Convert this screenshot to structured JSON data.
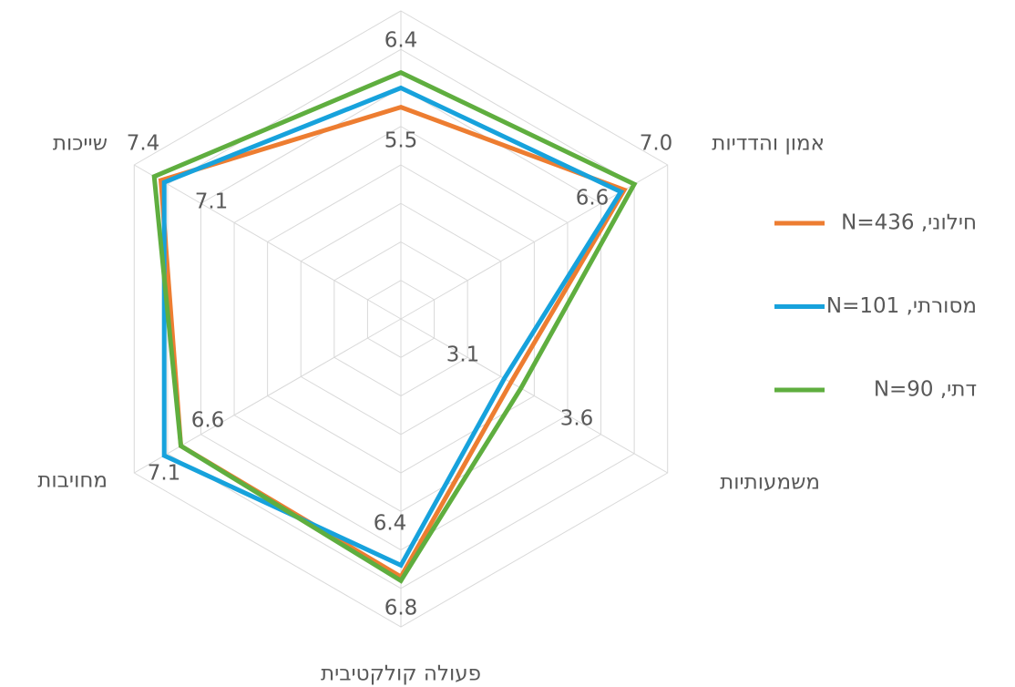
{
  "chart_data": {
    "type": "radar",
    "categories": [
      null,
      "אמון והדדיות",
      "משמעותיות",
      "פעולה קולקטיבית",
      "מחויבות",
      "שייכות"
    ],
    "ylim": [
      0,
      8
    ],
    "yticks": [
      0,
      1,
      2,
      3,
      4,
      5,
      6,
      7,
      8
    ],
    "grid": true,
    "legend": "right",
    "series": [
      {
        "name": "חילוני, N=436",
        "color": "#ed7d31",
        "values": [
          5.5,
          6.7,
          3.3,
          6.7,
          6.6,
          7.2
        ],
        "value_labels": [
          "5.5",
          null,
          null,
          null,
          null,
          null
        ]
      },
      {
        "name": "מסורתי, N=101",
        "color": "#17a2dc",
        "values": [
          6.0,
          6.6,
          3.1,
          6.4,
          7.1,
          7.1
        ],
        "value_labels": [
          null,
          "6.6",
          "3.1",
          "6.4",
          "7.1",
          "7.1"
        ]
      },
      {
        "name": "דתי, N=90",
        "color": "#5fae3f",
        "values": [
          6.4,
          7.0,
          3.6,
          6.8,
          6.6,
          7.4
        ],
        "value_labels": [
          "6.4",
          "7.0",
          "3.6",
          "6.8",
          "6.6",
          "7.4"
        ]
      }
    ]
  }
}
